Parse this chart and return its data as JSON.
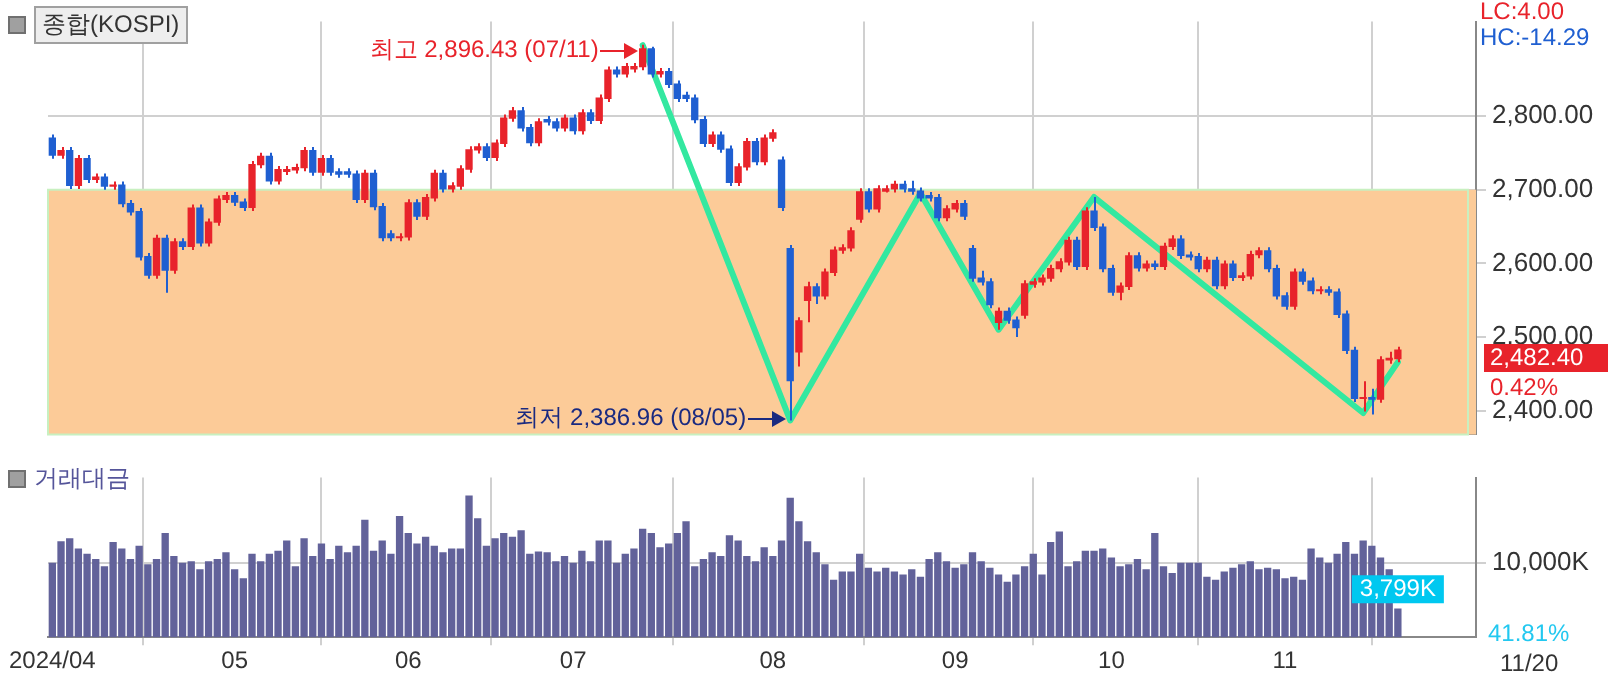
{
  "chart_data": [
    {
      "type": "candlestick",
      "title": "종합(KOSPI)",
      "categories": [
        "2024/04",
        null,
        null,
        null,
        null,
        null,
        null,
        null,
        null,
        null,
        null,
        null,
        null,
        null,
        null,
        null,
        null,
        null,
        null,
        null,
        null,
        "05",
        null,
        null,
        null,
        null,
        null,
        null,
        null,
        null,
        null,
        null,
        null,
        null,
        null,
        null,
        null,
        null,
        null,
        null,
        null,
        "06",
        null,
        null,
        null,
        null,
        null,
        null,
        null,
        null,
        null,
        null,
        null,
        null,
        null,
        null,
        null,
        null,
        null,
        null,
        "07",
        null,
        null,
        null,
        null,
        null,
        null,
        null,
        null,
        null,
        null,
        null,
        null,
        null,
        null,
        null,
        null,
        null,
        null,
        null,
        null,
        null,
        null,
        "08",
        null,
        null,
        null,
        null,
        null,
        null,
        null,
        null,
        null,
        null,
        null,
        null,
        null,
        null,
        null,
        null,
        null,
        null,
        null,
        null,
        "09",
        null,
        null,
        null,
        null,
        null,
        null,
        null,
        null,
        null,
        null,
        null,
        null,
        null,
        null,
        null,
        null,
        null,
        "10",
        null,
        null,
        null,
        null,
        null,
        null,
        null,
        null,
        null,
        null,
        null,
        null,
        null,
        null,
        null,
        null,
        null,
        null,
        null,
        "11",
        null,
        null,
        null,
        null,
        null,
        null,
        null,
        null,
        null,
        null,
        null,
        null,
        null
      ],
      "ohlc": [
        [
          2770,
          2775,
          2742,
          2747
        ],
        [
          2747,
          2758,
          2742,
          2753
        ],
        [
          2753,
          2758,
          2701,
          2706
        ],
        [
          2706,
          2747,
          2701,
          2742
        ],
        [
          2742,
          2747,
          2709,
          2714
        ],
        [
          2714,
          2722,
          2709,
          2717
        ],
        [
          2717,
          2722,
          2700,
          2705
        ],
        [
          2705,
          2711,
          2700,
          2706
        ],
        [
          2706,
          2711,
          2676,
          2681
        ],
        [
          2681,
          2686,
          2665,
          2670
        ],
        [
          2670,
          2675,
          2604,
          2609
        ],
        [
          2609,
          2614,
          2579,
          2584
        ],
        [
          2584,
          2639,
          2579,
          2634
        ],
        [
          2634,
          2639,
          2560,
          2591
        ],
        [
          2591,
          2634,
          2586,
          2629
        ],
        [
          2629,
          2634,
          2618,
          2623
        ],
        [
          2623,
          2680,
          2618,
          2675
        ],
        [
          2675,
          2680,
          2623,
          2628
        ],
        [
          2628,
          2661,
          2623,
          2656
        ],
        [
          2656,
          2692,
          2651,
          2687
        ],
        [
          2687,
          2697,
          2682,
          2692
        ],
        [
          2692,
          2697,
          2678,
          2683
        ],
        [
          2683,
          2688,
          2671,
          2676
        ],
        [
          2676,
          2739,
          2671,
          2734
        ],
        [
          2734,
          2750,
          2729,
          2745
        ],
        [
          2745,
          2750,
          2707,
          2712
        ],
        [
          2712,
          2732,
          2707,
          2727
        ],
        [
          2725,
          2732,
          2720,
          2727
        ],
        [
          2727,
          2735,
          2722,
          2730
        ],
        [
          2730,
          2758,
          2725,
          2753
        ],
        [
          2753,
          2758,
          2719,
          2724
        ],
        [
          2724,
          2747,
          2719,
          2742
        ],
        [
          2742,
          2747,
          2719,
          2724
        ],
        [
          2724,
          2729,
          2716,
          2721
        ],
        [
          2724,
          2729,
          2716,
          2721
        ],
        [
          2721,
          2726,
          2682,
          2687
        ],
        [
          2687,
          2727,
          2682,
          2722
        ],
        [
          2722,
          2727,
          2672,
          2677
        ],
        [
          2677,
          2682,
          2630,
          2635
        ],
        [
          2640,
          2645,
          2630,
          2635
        ],
        [
          2635,
          2641,
          2630,
          2636
        ],
        [
          2636,
          2687,
          2631,
          2682
        ],
        [
          2682,
          2687,
          2659,
          2664
        ],
        [
          2664,
          2694,
          2659,
          2689
        ],
        [
          2689,
          2727,
          2684,
          2722
        ],
        [
          2722,
          2727,
          2696,
          2701
        ],
        [
          2701,
          2710,
          2696,
          2705
        ],
        [
          2705,
          2733,
          2700,
          2728
        ],
        [
          2728,
          2759,
          2723,
          2754
        ],
        [
          2754,
          2763,
          2749,
          2758
        ],
        [
          2758,
          2763,
          2739,
          2744
        ],
        [
          2744,
          2768,
          2739,
          2763
        ],
        [
          2763,
          2802,
          2758,
          2797
        ],
        [
          2797,
          2812,
          2792,
          2807
        ],
        [
          2807,
          2812,
          2779,
          2784
        ],
        [
          2784,
          2789,
          2759,
          2764
        ],
        [
          2764,
          2797,
          2759,
          2792
        ],
        [
          2795,
          2800,
          2787,
          2792
        ],
        [
          2792,
          2797,
          2779,
          2784
        ],
        [
          2784,
          2802,
          2779,
          2797
        ],
        [
          2797,
          2802,
          2775,
          2780
        ],
        [
          2780,
          2809,
          2775,
          2804
        ],
        [
          2804,
          2809,
          2789,
          2794
        ],
        [
          2794,
          2829,
          2789,
          2824
        ],
        [
          2824,
          2867,
          2819,
          2862
        ],
        [
          2862,
          2867,
          2852,
          2857
        ],
        [
          2857,
          2872,
          2852,
          2867
        ],
        [
          2864,
          2872,
          2859,
          2867
        ],
        [
          2867,
          2896.43,
          2862,
          2891
        ],
        [
          2891,
          2894,
          2852,
          2857
        ],
        [
          2857,
          2865,
          2852,
          2860
        ],
        [
          2860,
          2865,
          2838,
          2843
        ],
        [
          2843,
          2848,
          2819,
          2824
        ],
        [
          2828,
          2833,
          2819,
          2824
        ],
        [
          2824,
          2829,
          2790,
          2795
        ],
        [
          2795,
          2800,
          2758,
          2763
        ],
        [
          2763,
          2779,
          2758,
          2774
        ],
        [
          2774,
          2779,
          2750,
          2755
        ],
        [
          2755,
          2760,
          2705,
          2710
        ],
        [
          2710,
          2736,
          2705,
          2731
        ],
        [
          2731,
          2770,
          2726,
          2765
        ],
        [
          2765,
          2770,
          2733,
          2738
        ],
        [
          2738,
          2775,
          2733,
          2770
        ],
        [
          2770,
          2782,
          2765,
          2777
        ],
        [
          2740,
          2745,
          2671,
          2676
        ],
        [
          2620,
          2625,
          2386.96,
          2441
        ],
        [
          2480,
          2527,
          2460,
          2522
        ],
        [
          2550,
          2575,
          2520,
          2568
        ],
        [
          2568,
          2573,
          2545,
          2556
        ],
        [
          2556,
          2593,
          2551,
          2588
        ],
        [
          2588,
          2623,
          2583,
          2618
        ],
        [
          2618,
          2626,
          2613,
          2621
        ],
        [
          2621,
          2649,
          2616,
          2644
        ],
        [
          2660,
          2702,
          2655,
          2697
        ],
        [
          2697,
          2702,
          2669,
          2674
        ],
        [
          2674,
          2706,
          2669,
          2701
        ],
        [
          2698,
          2706,
          2696,
          2701
        ],
        [
          2701,
          2712,
          2696,
          2707
        ],
        [
          2707,
          2712,
          2696,
          2701
        ],
        [
          2701,
          2712,
          2693,
          2698
        ],
        [
          2698,
          2703,
          2684,
          2689
        ],
        [
          2692,
          2697,
          2684,
          2689
        ],
        [
          2689,
          2694,
          2657,
          2662
        ],
        [
          2662,
          2679,
          2657,
          2674
        ],
        [
          2674,
          2686,
          2669,
          2681
        ],
        [
          2681,
          2686,
          2659,
          2664
        ],
        [
          2620,
          2625,
          2575,
          2580
        ],
        [
          2580,
          2590,
          2570,
          2575
        ],
        [
          2575,
          2580,
          2539,
          2544
        ],
        [
          2520,
          2540,
          2510,
          2535
        ],
        [
          2535,
          2540,
          2518,
          2523
        ],
        [
          2523,
          2528,
          2500,
          2513
        ],
        [
          2530,
          2577,
          2525,
          2572
        ],
        [
          2572,
          2580,
          2567,
          2575
        ],
        [
          2575,
          2585,
          2570,
          2580
        ],
        [
          2580,
          2598,
          2575,
          2593
        ],
        [
          2593,
          2607,
          2588,
          2602
        ],
        [
          2602,
          2636,
          2597,
          2631
        ],
        [
          2631,
          2636,
          2591,
          2596
        ],
        [
          2596,
          2676,
          2591,
          2671
        ],
        [
          2671,
          2690,
          2644,
          2649
        ],
        [
          2649,
          2654,
          2588,
          2593
        ],
        [
          2593,
          2598,
          2556,
          2561
        ],
        [
          2561,
          2574,
          2550,
          2569
        ],
        [
          2569,
          2615,
          2564,
          2610
        ],
        [
          2610,
          2615,
          2589,
          2594
        ],
        [
          2594,
          2604,
          2589,
          2599
        ],
        [
          2599,
          2604,
          2591,
          2596
        ],
        [
          2596,
          2628,
          2591,
          2623
        ],
        [
          2623,
          2638,
          2618,
          2633
        ],
        [
          2633,
          2638,
          2606,
          2611
        ],
        [
          2611,
          2616,
          2604,
          2609
        ],
        [
          2609,
          2614,
          2588,
          2593
        ],
        [
          2593,
          2609,
          2588,
          2604
        ],
        [
          2604,
          2609,
          2565,
          2570
        ],
        [
          2570,
          2604,
          2565,
          2599
        ],
        [
          2599,
          2604,
          2576,
          2581
        ],
        [
          2581,
          2588,
          2576,
          2583
        ],
        [
          2583,
          2617,
          2578,
          2612
        ],
        [
          2612,
          2622,
          2607,
          2617
        ],
        [
          2617,
          2622,
          2588,
          2593
        ],
        [
          2593,
          2598,
          2551,
          2556
        ],
        [
          2556,
          2561,
          2537,
          2542
        ],
        [
          2542,
          2593,
          2537,
          2588
        ],
        [
          2588,
          2593,
          2571,
          2576
        ],
        [
          2576,
          2581,
          2558,
          2563
        ],
        [
          2563,
          2569,
          2558,
          2564
        ],
        [
          2564,
          2569,
          2556,
          2561
        ],
        [
          2561,
          2566,
          2526,
          2531
        ],
        [
          2531,
          2536,
          2477,
          2482
        ],
        [
          2482,
          2487,
          2412,
          2417
        ],
        [
          2417,
          2440,
          2399,
          2418
        ],
        [
          2418,
          2430,
          2395,
          2416
        ],
        [
          2416,
          2474,
          2411,
          2469
        ],
        [
          2469,
          2480,
          2464,
          2471
        ],
        [
          2471,
          2487,
          2466,
          2482.4
        ]
      ],
      "series": [
        {
          "type": "line",
          "color": "#33e8a0",
          "values": [
            null,
            null,
            null,
            null,
            null,
            null,
            null,
            null,
            null,
            null,
            null,
            null,
            null,
            null,
            null,
            null,
            null,
            null,
            null,
            null,
            null,
            null,
            null,
            null,
            null,
            null,
            null,
            null,
            null,
            null,
            null,
            null,
            null,
            null,
            null,
            null,
            null,
            null,
            null,
            null,
            null,
            null,
            null,
            null,
            null,
            null,
            null,
            null,
            null,
            null,
            null,
            null,
            null,
            null,
            null,
            null,
            null,
            null,
            null,
            null,
            null,
            null,
            null,
            null,
            null,
            null,
            null,
            null,
            2896,
            null,
            null,
            null,
            null,
            null,
            null,
            null,
            null,
            null,
            null,
            null,
            null,
            null,
            null,
            null,
            null,
            2387,
            null,
            null,
            null,
            null,
            null,
            null,
            null,
            null,
            null,
            null,
            null,
            null,
            null,
            null,
            2695,
            null,
            null,
            null,
            null,
            null,
            null,
            null,
            null,
            2510,
            null,
            null,
            null,
            null,
            null,
            null,
            null,
            null,
            null,
            null,
            2690,
            null,
            null,
            null,
            null,
            null,
            null,
            null,
            null,
            null,
            null,
            null,
            null,
            null,
            null,
            null,
            null,
            null,
            null,
            null,
            null,
            null,
            null,
            null,
            null,
            null,
            null,
            null,
            null,
            null,
            null,
            2397,
            null,
            null,
            null,
            2466
          ]
        }
      ],
      "ylim": [
        2368,
        2928
      ],
      "yticks": [
        {
          "value": 2400,
          "label": "2,400.00"
        },
        {
          "value": 2500,
          "label": "2,500.00"
        },
        {
          "value": 2600,
          "label": "2,600.00"
        },
        {
          "value": 2700,
          "label": "2,700.00"
        },
        {
          "value": 2800,
          "label": "2,800.00"
        }
      ],
      "bands": [
        {
          "axis": "y",
          "from": 2368,
          "to": 2700,
          "color": "#fccb98"
        }
      ],
      "annotations": [
        "최고 2,896.43 (07/11)",
        "최저 2,386.96 (08/05)",
        "2,482.40",
        "LC:4.00",
        "HC:-14.29",
        "0.42%"
      ],
      "grid": true,
      "tick_labels": "y"
    },
    {
      "type": "bar",
      "title": "거래대금",
      "categories": [
        "2024/04",
        null,
        null,
        null,
        null,
        null,
        null,
        null,
        null,
        null,
        null,
        null,
        null,
        null,
        null,
        null,
        null,
        null,
        null,
        null,
        null,
        "05",
        null,
        null,
        null,
        null,
        null,
        null,
        null,
        null,
        null,
        null,
        null,
        null,
        null,
        null,
        null,
        null,
        null,
        null,
        null,
        "06",
        null,
        null,
        null,
        null,
        null,
        null,
        null,
        null,
        null,
        null,
        null,
        null,
        null,
        null,
        null,
        null,
        null,
        null,
        "07",
        null,
        null,
        null,
        null,
        null,
        null,
        null,
        null,
        null,
        null,
        null,
        null,
        null,
        null,
        null,
        null,
        null,
        null,
        null,
        null,
        null,
        null,
        "08",
        null,
        null,
        null,
        null,
        null,
        null,
        null,
        null,
        null,
        null,
        null,
        null,
        null,
        null,
        null,
        null,
        null,
        null,
        null,
        null,
        "09",
        null,
        null,
        null,
        null,
        null,
        null,
        null,
        null,
        null,
        null,
        null,
        null,
        null,
        null,
        null,
        null,
        null,
        "10",
        null,
        null,
        null,
        null,
        null,
        null,
        null,
        null,
        null,
        null,
        null,
        null,
        null,
        null,
        null,
        null,
        null,
        null,
        null,
        "11",
        null,
        null,
        null,
        null,
        null,
        null,
        null,
        null,
        null,
        null,
        null,
        null,
        null
      ],
      "values": [
        10000,
        12900,
        13300,
        11900,
        11200,
        10500,
        9500,
        12800,
        11900,
        10500,
        12300,
        9800,
        10500,
        14000,
        10900,
        10000,
        10200,
        9100,
        10200,
        10500,
        11400,
        9100,
        7900,
        11200,
        10200,
        11200,
        11600,
        13000,
        9500,
        13300,
        10900,
        12600,
        10500,
        12300,
        11400,
        12300,
        15800,
        11600,
        13000,
        11200,
        16300,
        14000,
        12600,
        13500,
        12300,
        11400,
        11900,
        11900,
        19100,
        16000,
        12300,
        13300,
        14000,
        13500,
        14400,
        11200,
        11500,
        11400,
        10200,
        10900,
        10000,
        11600,
        10200,
        13000,
        13000,
        10000,
        11200,
        11900,
        14600,
        14000,
        12100,
        12600,
        14000,
        15600,
        9500,
        10500,
        11400,
        10900,
        13700,
        13000,
        10900,
        10200,
        12100,
        10900,
        13000,
        18800,
        15600,
        12900,
        11400,
        9800,
        7700,
        8800,
        8800,
        11200,
        9300,
        8800,
        9300,
        8800,
        8400,
        9100,
        8100,
        10500,
        11400,
        10200,
        9300,
        9800,
        11400,
        10200,
        9300,
        8400,
        7400,
        8400,
        9500,
        11200,
        8400,
        12800,
        14200,
        9500,
        10200,
        11600,
        11600,
        11900,
        10700,
        9500,
        9800,
        10500,
        9100,
        14000,
        9500,
        8600,
        10000,
        10000,
        10000,
        8100,
        7700,
        8800,
        9300,
        9800,
        10200,
        9100,
        9300,
        9100,
        7900,
        8100,
        7700,
        11900,
        10700,
        10000,
        11200,
        12800,
        11200,
        13000,
        12300,
        10700,
        9100,
        3799
      ],
      "value_labels": [
        null,
        null,
        null,
        null,
        null,
        null,
        null,
        null,
        null,
        null,
        null,
        null,
        null,
        null,
        null,
        null,
        null,
        null,
        null,
        null,
        null,
        null,
        null,
        null,
        null,
        null,
        null,
        null,
        null,
        null,
        null,
        null,
        null,
        null,
        null,
        null,
        null,
        null,
        null,
        null,
        null,
        null,
        null,
        null,
        null,
        null,
        null,
        null,
        null,
        null,
        null,
        null,
        null,
        null,
        null,
        null,
        null,
        null,
        null,
        null,
        null,
        null,
        null,
        null,
        null,
        null,
        null,
        null,
        null,
        null,
        null,
        null,
        null,
        null,
        null,
        null,
        null,
        null,
        null,
        null,
        null,
        null,
        null,
        null,
        null,
        null,
        null,
        null,
        null,
        null,
        null,
        null,
        null,
        null,
        null,
        null,
        null,
        null,
        null,
        null,
        null,
        null,
        null,
        null,
        null,
        null,
        null,
        null,
        null,
        null,
        null,
        null,
        null,
        null,
        null,
        null,
        null,
        null,
        null,
        null,
        null,
        null,
        null,
        null,
        null,
        null,
        null,
        null,
        null,
        null,
        null,
        null,
        null,
        null,
        null,
        null,
        null,
        null,
        null,
        null,
        null,
        null,
        null,
        null,
        null,
        null,
        null,
        null,
        null,
        null,
        null,
        null,
        null,
        null,
        null,
        "3,799K"
      ],
      "color": "#62629a",
      "ylim": [
        0,
        21600
      ],
      "yticks": [
        {
          "value": 10000,
          "label": "10,000K"
        }
      ],
      "annotations": [
        "41.81%",
        "11/20"
      ],
      "grid": true
    }
  ]
}
